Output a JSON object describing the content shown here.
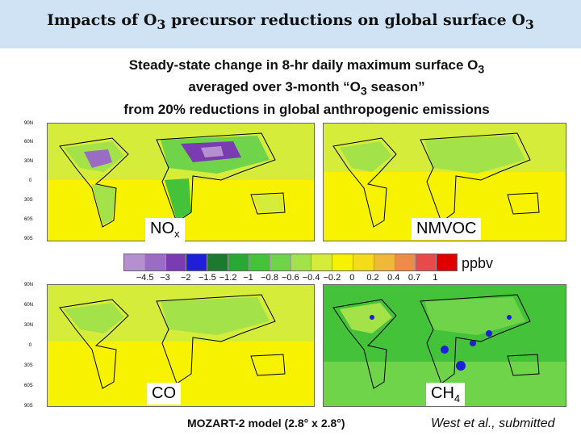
{
  "slide": {
    "title_pre": "Impacts of O",
    "title_sub": "3",
    "title_mid": " precursor reductions on global surface O",
    "title_sub2": "3",
    "subtitle_line1_pre": "Steady-state change in 8-hr daily maximum surface O",
    "subtitle_line1_sub": "3",
    "subtitle_line2_pre": "averaged over 3-month “O",
    "subtitle_line2_sub": "3",
    "subtitle_line2_post": " season”",
    "subtitle_line3": "from 20% reductions in global anthropogenic emissions"
  },
  "latitude_ticks": [
    "90N",
    "60N",
    "30N",
    "0",
    "30S",
    "60S",
    "90S"
  ],
  "panels": [
    {
      "label": "NO",
      "label_sub": "x",
      "scenario": "nox"
    },
    {
      "label": "NMVOC",
      "label_sub": "",
      "scenario": "nmvoc"
    },
    {
      "label": "CO",
      "label_sub": "",
      "scenario": "co"
    },
    {
      "label": "CH",
      "label_sub": "4",
      "scenario": "ch4"
    }
  ],
  "colorbar": {
    "unit": "ppbv",
    "ticks": [
      "−4.5",
      "−3",
      "−2",
      "−1.5",
      "−1.2",
      "−1",
      "−0.8",
      "−0.6",
      "−0.4",
      "−0.2",
      "0",
      "0.2",
      "0.4",
      "0.7",
      "1"
    ],
    "colors": [
      "#b58fd0",
      "#9a6cc4",
      "#7a3cb0",
      "#1f1fd8",
      "#1c7a2f",
      "#2aa834",
      "#44c23a",
      "#6fd44a",
      "#a4e24a",
      "#d6ec3a",
      "#f6f200",
      "#f4dc1a",
      "#f0b838",
      "#ee8a4a",
      "#e84a4a",
      "#e00000"
    ]
  },
  "footer": {
    "model": "MOZART-2 model (2.8° x 2.8°)",
    "citation": "West et al., submitted"
  }
}
